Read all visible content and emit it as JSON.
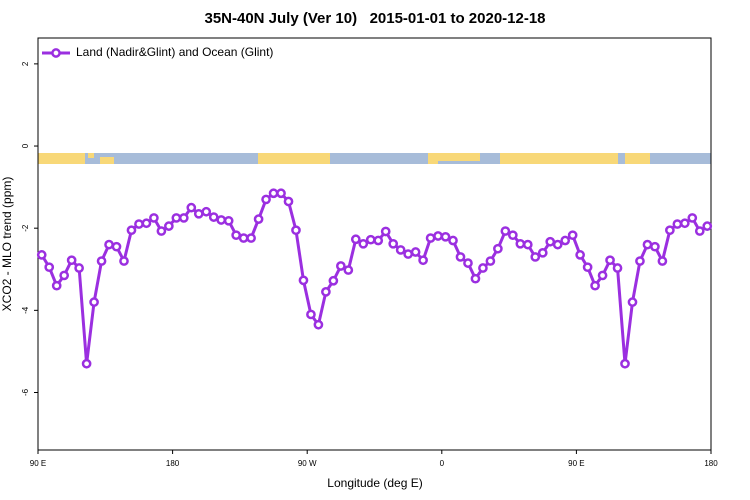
{
  "chart_data": {
    "type": "line",
    "title": "35N-40N July (Ver 10)   2015-01-01 to 2020-12-18",
    "x_label": "Longitude (deg E)",
    "y_label": "XCO2 - MLO trend (ppm)",
    "legend": "top-left",
    "xlim": [
      90,
      540
    ],
    "xticks": [
      {
        "value": 90,
        "label": "90 E"
      },
      180,
      {
        "value": 270,
        "label": "90 W"
      },
      {
        "value": 360,
        "label": "0"
      },
      {
        "value": 450,
        "label": "90 E"
      },
      {
        "value": 540,
        "label": "180"
      }
    ],
    "ylim": [
      -7.4,
      2.63
    ],
    "yticks": [
      2,
      0,
      -2,
      -4,
      -6
    ],
    "x": [
      92.5,
      97.5,
      102.5,
      107.5,
      112.5,
      117.5,
      122.5,
      127.5,
      132.5,
      137.5,
      142.5,
      147.5,
      152.5,
      157.5,
      162.5,
      167.5,
      172.5,
      177.5,
      182.5,
      187.5,
      192.5,
      197.5,
      202.5,
      207.5,
      212.5,
      217.5,
      222.5,
      227.5,
      232.5,
      237.5,
      242.5,
      247.5,
      252.5,
      257.5,
      262.5,
      267.5,
      272.5,
      277.5,
      282.5,
      287.5,
      292.5,
      297.5,
      302.5,
      307.5,
      312.5,
      317.5,
      322.5,
      327.5,
      332.5,
      337.5,
      342.5,
      347.5,
      352.5,
      357.5,
      362.5,
      367.5,
      372.5,
      377.5,
      382.5,
      387.5,
      392.5,
      397.5,
      402.5,
      407.5,
      412.5,
      417.5,
      422.5,
      427.5,
      432.5,
      437.5,
      442.5,
      447.5,
      452.5,
      457.5,
      462.5,
      467.5,
      472.5,
      477.5,
      482.5,
      487.5,
      492.5,
      497.5,
      502.5,
      507.5,
      512.5,
      517.5,
      522.5,
      527.5,
      532.5,
      537.5
    ],
    "series": [
      {
        "name": "Land (Nadir&Glint) and Ocean (Glint)",
        "color": "#9b2fe0",
        "values": [
          -2.65,
          -2.95,
          -3.4,
          -3.15,
          -2.78,
          -2.97,
          -5.3,
          -3.8,
          -2.8,
          -2.4,
          -2.45,
          -2.8,
          -2.05,
          -1.9,
          -1.88,
          -1.75,
          -2.07,
          -1.95,
          -1.75,
          -1.75,
          -1.5,
          -1.65,
          -1.6,
          -1.73,
          -1.8,
          -1.82,
          -2.17,
          -2.24,
          -2.24,
          -1.78,
          -1.3,
          -1.15,
          -1.15,
          -1.35,
          -2.05,
          -3.27,
          -4.1,
          -4.35,
          -3.55,
          -3.28,
          -2.92,
          -3.02,
          -2.27,
          -2.38,
          -2.28,
          -2.3,
          -2.08,
          -2.38,
          -2.53,
          -2.63,
          -2.58,
          -2.78,
          -2.24,
          -2.19,
          -2.21,
          -2.3,
          -2.7,
          -2.85,
          -3.23,
          -2.97,
          -2.8,
          -2.5,
          -2.07,
          -2.17,
          -2.38,
          -2.4,
          -2.7,
          -2.6,
          -2.33,
          -2.4,
          -2.3,
          -2.17,
          -2.65,
          -2.95,
          -3.4,
          -3.15,
          -2.78,
          -2.97,
          -5.3,
          -3.8,
          -2.8,
          -2.4,
          -2.45,
          -2.8,
          -2.05,
          -1.9,
          -1.88,
          -1.75,
          -2.07,
          -1.95
        ]
      }
    ]
  }
}
